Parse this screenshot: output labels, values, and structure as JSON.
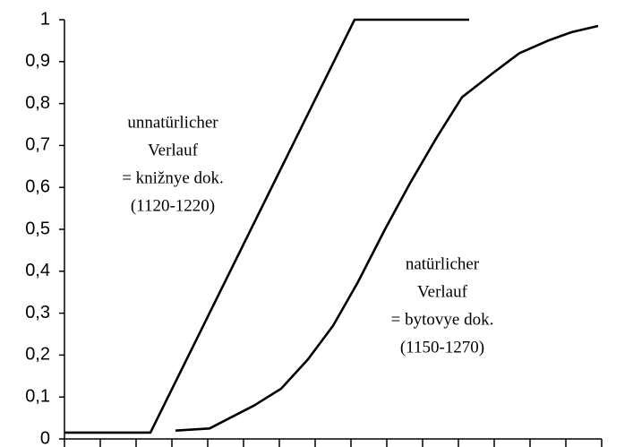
{
  "chart_data": {
    "type": "line",
    "xlim": [
      0,
      15
    ],
    "xticks": [
      0,
      1,
      2,
      3,
      4,
      5,
      6,
      7,
      8,
      9,
      10,
      11,
      12,
      13,
      14,
      15
    ],
    "ylim": [
      0,
      1
    ],
    "yticks": [
      0,
      {
        "value": 0.1,
        "label": "0,1"
      },
      {
        "value": 0.2,
        "label": "0,2"
      },
      {
        "value": 0.3,
        "label": "0,3"
      },
      {
        "value": 0.4,
        "label": "0,4"
      },
      {
        "value": 0.5,
        "label": "0,5"
      },
      {
        "value": 0.6,
        "label": "0,6"
      },
      {
        "value": 0.7,
        "label": "0,7"
      },
      {
        "value": 0.8,
        "label": "0,8"
      },
      {
        "value": 0.9,
        "label": "0,9"
      },
      1
    ],
    "series": [
      {
        "color": "#000000",
        "x": [
          0,
          2.4,
          8.1,
          11.3
        ],
        "values": [
          0.015,
          0.015,
          1,
          1
        ]
      },
      {
        "color": "#000000",
        "x": [
          3.1,
          4.05,
          5.3,
          6.05,
          6.8,
          7.5,
          8.2,
          8.95,
          9.65,
          10.4,
          11.1,
          12.0,
          12.7,
          13.5,
          14.15,
          14.9
        ],
        "values": [
          0.02,
          0.025,
          0.08,
          0.12,
          0.19,
          0.27,
          0.375,
          0.5,
          0.61,
          0.72,
          0.815,
          0.875,
          0.92,
          0.95,
          0.97,
          0.985
        ]
      }
    ],
    "annotations": [
      [
        "unnatürlicher",
        "Verlauf",
        "= knižnye dok.",
        "(1120-1220)"
      ],
      [
        "natürlicher",
        "Verlauf",
        "= bytovye dok.",
        "(1150-1270)"
      ]
    ]
  }
}
